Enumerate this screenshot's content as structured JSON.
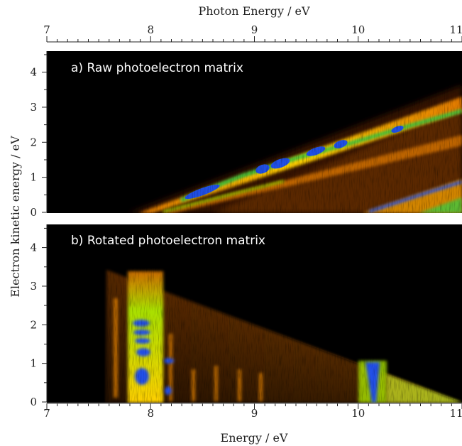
{
  "chart_data": [
    {
      "type": "heatmap",
      "title": "a) Raw photoelectron matrix",
      "xlabel": "Photon Energy / eV",
      "ylabel": "Electron kinetic energy / eV",
      "x_ticks": [
        "7",
        "8",
        "9",
        "10",
        "11"
      ],
      "y_ticks": [
        "0",
        "1",
        "2",
        "3",
        "4"
      ],
      "xlim": [
        7,
        11
      ],
      "ylim": [
        0,
        4.6
      ],
      "x_axis_position": "top",
      "grid": false,
      "colormap": [
        "#000000",
        "#5a2a00",
        "#e07800",
        "#ffd000",
        "#a8e000",
        "#20c040",
        "#1848e0"
      ],
      "features": [
        {
          "type": "band",
          "x": [
            7.9,
            11.0
          ],
          "y": [
            0.0,
            3.25
          ]
        },
        {
          "type": "band",
          "x": [
            8.2,
            11.0
          ],
          "y": [
            0.0,
            2.1
          ]
        },
        {
          "type": "band",
          "x": [
            10.1,
            11.0
          ],
          "y": [
            0.0,
            0.85
          ]
        }
      ]
    },
    {
      "type": "heatmap",
      "title": "b) Rotated photoelectron matrix",
      "xlabel": "Energy / eV",
      "ylabel": "Electron kinetic energy / eV",
      "x_ticks": [
        "7",
        "8",
        "9",
        "10",
        "11"
      ],
      "y_ticks": [
        "0",
        "1",
        "2",
        "3",
        "4"
      ],
      "xlim": [
        7,
        11
      ],
      "ylim": [
        0,
        4.6
      ],
      "x_axis_position": "bottom",
      "grid": false,
      "colormap": [
        "#000000",
        "#5a2a00",
        "#e07800",
        "#ffd000",
        "#a8e000",
        "#20c040",
        "#1848e0"
      ],
      "features": [
        {
          "type": "triangle",
          "x": [
            7.6,
            11.0
          ],
          "y": [
            3.35,
            0.0
          ]
        },
        {
          "type": "vertical_band",
          "x": 7.93,
          "y": [
            0.0,
            3.2
          ]
        },
        {
          "type": "vertical_band",
          "x": 10.2,
          "y": [
            0.0,
            1.0
          ]
        }
      ]
    }
  ]
}
